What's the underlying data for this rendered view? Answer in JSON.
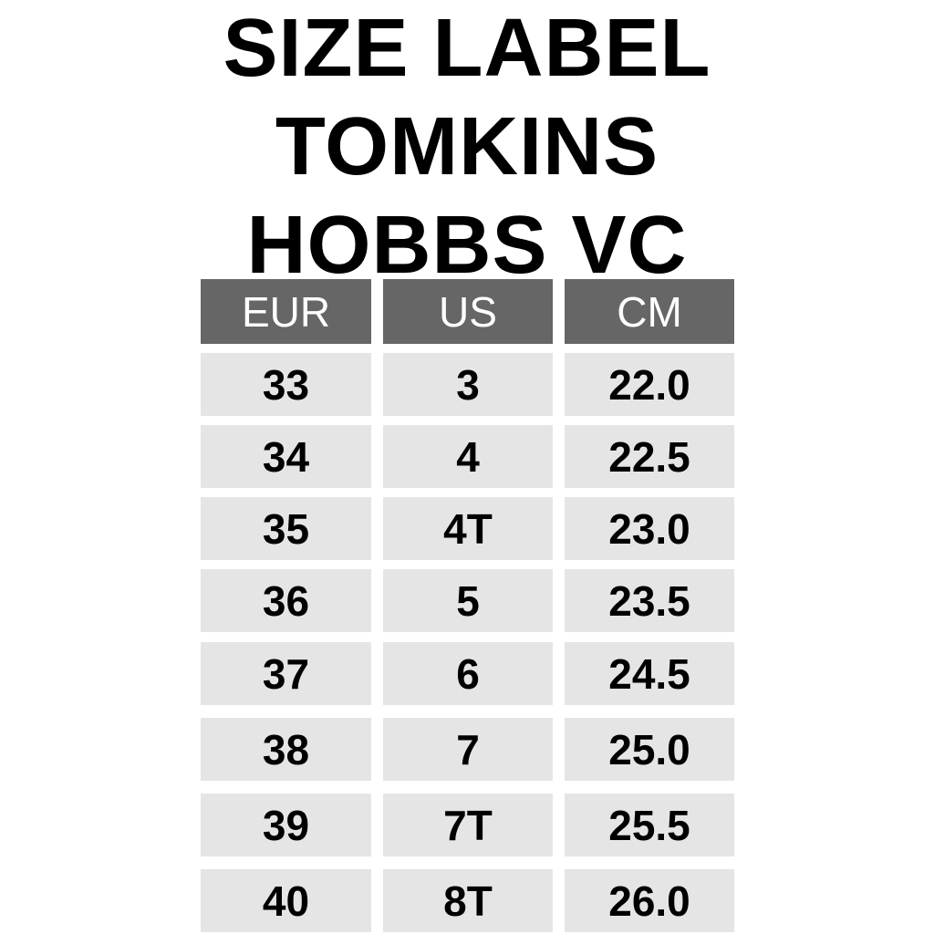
{
  "title_lines": [
    "SIZE LABEL",
    "TOMKINS",
    "HOBBS VC"
  ],
  "table": {
    "headers": [
      "EUR",
      "US",
      "CM"
    ],
    "rows": [
      [
        "33",
        "3",
        "22.0"
      ],
      [
        "34",
        "4",
        "22.5"
      ],
      [
        "35",
        "4T",
        "23.0"
      ],
      [
        "36",
        "5",
        "23.5"
      ],
      [
        "37",
        "6",
        "24.5"
      ],
      [
        "38",
        "7",
        "25.0"
      ],
      [
        "39",
        "7T",
        "25.5"
      ],
      [
        "40",
        "8T",
        "26.0"
      ]
    ]
  },
  "colors": {
    "header_bg": "#666666",
    "cell_bg": "#e5e5e5",
    "header_text": "#ffffff",
    "cell_text": "#000000"
  }
}
